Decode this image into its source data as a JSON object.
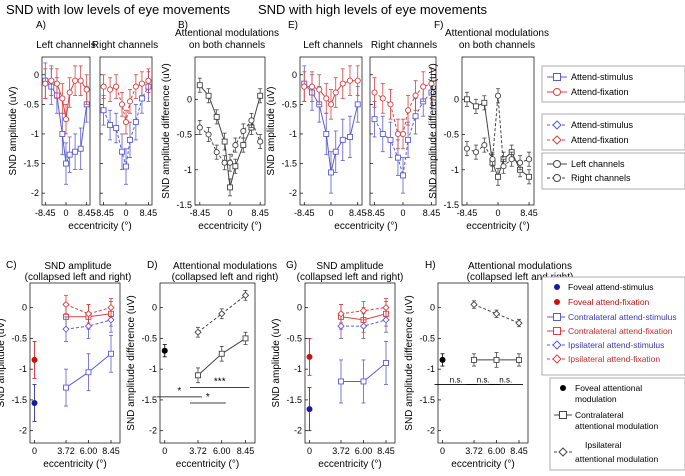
{
  "headers": {
    "low": "SND with low levels of eye movements",
    "high": "SND with high levels of eye movements"
  },
  "panel_letters": [
    "A)",
    "B)",
    "C)",
    "D)",
    "E)",
    "F)",
    "G)",
    "H)"
  ],
  "legends": {
    "top_lines": {
      "attend_stimulus": "Attend-stimulus",
      "attend_fixation": "Attend-fixation"
    },
    "top_dashed": {
      "attend_stimulus": "Attend-stimulus",
      "attend_fixation": "Attend-fixation"
    },
    "top_channels": {
      "left": "Left channels",
      "right": "Right channels"
    },
    "bottom_conditions": [
      "Foveal attend-stimulus",
      "Foveal attend-fixation",
      "Contralateral attend-stimulus",
      "Contralateral attend-fixation",
      "Ipsilateral attend-stimulus",
      "Ipsilateral attend-fixation"
    ],
    "bottom_modulation": [
      "Foveal attentional modulation",
      "Contralateral attentional modulation",
      "Ipsilateral attentional modulation"
    ]
  },
  "colors": {
    "stim": "#5b5bd6",
    "fix": "#d94040",
    "mod": "#444444",
    "foveal_stim": "#1a1aa0",
    "foveal_fix": "#d01010"
  },
  "chart_data": [
    {
      "id": "A_left",
      "type": "line",
      "panel": "A)",
      "title": "Left channels",
      "xlabel": "eccentricity (°)",
      "ylabel": "SND amplitude (uV)",
      "ylim": [
        -2.2,
        0.3
      ],
      "xticks": [
        "-8.45",
        "0",
        "8.45"
      ],
      "yticks": [
        "0",
        "-0.5",
        "-1",
        "-1.5",
        "-2"
      ],
      "x": [
        -8.45,
        -6,
        -3.72,
        -1.5,
        0,
        1.5,
        3.72,
        6,
        8.45
      ],
      "series": [
        {
          "name": "Attend-stimulus",
          "color": "#5b5bd6",
          "dashed": false,
          "values": [
            -0.1,
            -0.2,
            -0.35,
            -1.0,
            -1.5,
            -1.35,
            -1.3,
            -1.25,
            -0.5
          ],
          "errors": [
            0.3,
            0.3,
            0.3,
            0.35,
            0.35,
            0.3,
            0.3,
            0.35,
            0.3
          ]
        },
        {
          "name": "Attend-fixation",
          "color": "#d94040",
          "dashed": false,
          "values": [
            -0.15,
            -0.1,
            -0.15,
            -0.4,
            -0.75,
            -0.3,
            -0.1,
            -0.1,
            -0.25
          ],
          "errors": [
            0.25,
            0.25,
            0.25,
            0.25,
            0.25,
            0.25,
            0.25,
            0.25,
            0.25
          ]
        }
      ]
    },
    {
      "id": "A_right",
      "type": "line",
      "title": "Right channels",
      "ylim": [
        -2.2,
        0.3
      ],
      "xticks": [
        "-8.45",
        "0",
        "8.45"
      ],
      "x": [
        -8.45,
        -6,
        -3.72,
        -1.5,
        0,
        1.5,
        3.72,
        6,
        8.45
      ],
      "series": [
        {
          "name": "Attend-stimulus",
          "color": "#5b5bd6",
          "dashed": true,
          "values": [
            -0.6,
            -0.85,
            -0.9,
            -1.3,
            -1.55,
            -1.1,
            -0.8,
            -0.4,
            -0.2
          ],
          "errors": [
            0.25,
            0.25,
            0.25,
            0.3,
            0.3,
            0.3,
            0.3,
            0.25,
            0.25
          ]
        },
        {
          "name": "Attend-fixation",
          "color": "#d94040",
          "dashed": true,
          "values": [
            -0.2,
            -0.25,
            -0.2,
            -0.5,
            -0.8,
            -0.45,
            -0.2,
            -0.15,
            -0.1
          ],
          "errors": [
            0.2,
            0.2,
            0.2,
            0.2,
            0.2,
            0.2,
            0.2,
            0.2,
            0.2
          ]
        }
      ]
    },
    {
      "id": "B",
      "type": "line",
      "panel": "B)",
      "title": "Attentional modulations on both channels",
      "xlabel": "eccentricity (°)",
      "ylabel": "SND amplitude difference (uV)",
      "ylim": [
        -1.5,
        0.6
      ],
      "xticks": [
        "-8.45",
        "0",
        "8.45"
      ],
      "yticks": [
        "0",
        "-0.5",
        "-1",
        "-1.5"
      ],
      "x": [
        -8.45,
        -6,
        -3.72,
        -1.5,
        0,
        1.5,
        3.72,
        6,
        8.45
      ],
      "series": [
        {
          "name": "Left channels",
          "color": "#444444",
          "dashed": false,
          "values": [
            0.2,
            0.05,
            -0.25,
            -0.6,
            -1.25,
            -0.95,
            -0.65,
            -0.4,
            0.05
          ],
          "errors": [
            0.1,
            0.1,
            0.1,
            0.12,
            0.12,
            0.1,
            0.1,
            0.1,
            0.1
          ]
        },
        {
          "name": "Right channels",
          "color": "#444444",
          "dashed": true,
          "values": [
            -0.4,
            -0.5,
            -0.75,
            -0.9,
            -0.9,
            -0.65,
            -0.45,
            -0.3,
            -0.6
          ],
          "errors": [
            0.1,
            0.1,
            0.1,
            0.1,
            0.12,
            0.1,
            0.1,
            0.1,
            0.1
          ]
        }
      ]
    },
    {
      "id": "E_left",
      "type": "line",
      "panel": "E)",
      "title": "Left channels",
      "xlabel": "eccentricity (°)",
      "ylabel": "SND amplitude (uV)",
      "ylim": [
        -2.2,
        0.3
      ],
      "xticks": [
        "-8.45",
        "0",
        "8.45"
      ],
      "yticks": [
        "0",
        "-0.5",
        "-1",
        "-1.5",
        "-2"
      ],
      "x": [
        -8.45,
        -6,
        -3.72,
        -1.5,
        0,
        1.5,
        3.72,
        6,
        8.45
      ],
      "series": [
        {
          "name": "Attend-stimulus",
          "color": "#5b5bd6",
          "dashed": false,
          "values": [
            -0.15,
            -0.3,
            -0.5,
            -1.0,
            -1.65,
            -1.3,
            -1.1,
            -1.05,
            -0.5
          ],
          "errors": [
            0.3,
            0.3,
            0.3,
            0.35,
            0.35,
            0.35,
            0.35,
            0.35,
            0.3
          ]
        },
        {
          "name": "Attend-fixation",
          "color": "#d94040",
          "dashed": false,
          "values": [
            -0.2,
            -0.2,
            -0.25,
            -0.4,
            -0.5,
            -0.3,
            -0.15,
            -0.1,
            -0.1
          ],
          "errors": [
            0.25,
            0.25,
            0.25,
            0.25,
            0.25,
            0.25,
            0.25,
            0.25,
            0.25
          ]
        }
      ]
    },
    {
      "id": "E_right",
      "type": "line",
      "title": "Right channels",
      "ylim": [
        -2.2,
        0.3
      ],
      "xticks": [
        "-8.45",
        "0",
        "8.45"
      ],
      "x": [
        -8.45,
        -6,
        -3.72,
        -1.5,
        0,
        1.5,
        3.72,
        6,
        8.45
      ],
      "series": [
        {
          "name": "Attend-stimulus",
          "color": "#5b5bd6",
          "dashed": true,
          "values": [
            -0.75,
            -1.0,
            -1.1,
            -1.4,
            -1.7,
            -1.1,
            -0.7,
            -0.45,
            -0.3
          ],
          "errors": [
            0.3,
            0.3,
            0.3,
            0.3,
            0.3,
            0.3,
            0.3,
            0.25,
            0.25
          ]
        },
        {
          "name": "Attend-fixation",
          "color": "#d94040",
          "dashed": true,
          "values": [
            -0.3,
            -0.4,
            -0.5,
            -1.0,
            -1.0,
            -0.6,
            -0.35,
            -0.2,
            -0.15
          ],
          "errors": [
            0.25,
            0.25,
            0.25,
            0.25,
            0.25,
            0.25,
            0.25,
            0.25,
            0.25
          ]
        }
      ]
    },
    {
      "id": "F",
      "type": "line",
      "panel": "F)",
      "title": "Attentional modulations on both channels",
      "xlabel": "eccentricity (°)",
      "ylabel": "SND amplitude difference (uV)",
      "ylim": [
        -1.5,
        0.6
      ],
      "xticks": [
        "-8.45",
        "0",
        "8.45"
      ],
      "yticks": [
        "0",
        "-0.5",
        "-1",
        "-1.5"
      ],
      "x": [
        -8.45,
        -6,
        -3.72,
        -1.5,
        0,
        1.5,
        3.72,
        6,
        8.45
      ],
      "series": [
        {
          "name": "Left channels",
          "color": "#444444",
          "dashed": false,
          "values": [
            0.0,
            -0.1,
            -0.05,
            -0.9,
            -1.1,
            -0.85,
            -0.75,
            -1.0,
            -1.1
          ],
          "errors": [
            0.1,
            0.1,
            0.1,
            0.12,
            0.12,
            0.1,
            0.1,
            0.1,
            0.1
          ]
        },
        {
          "name": "Right channels",
          "color": "#444444",
          "dashed": true,
          "values": [
            -0.7,
            -0.75,
            -0.65,
            -0.85,
            0.05,
            -0.95,
            -0.85,
            -0.9,
            -0.85
          ],
          "errors": [
            0.1,
            0.1,
            0.1,
            0.1,
            0.1,
            0.1,
            0.1,
            0.1,
            0.1
          ]
        }
      ]
    },
    {
      "id": "C",
      "type": "line",
      "panel": "C)",
      "title": "SND amplitude (collapsed left and right)",
      "xlabel": "eccentricity (°)",
      "ylabel": "SND amplitude (uV)",
      "ylim": [
        -2.2,
        0.4
      ],
      "xticks": [
        "0",
        "3.72",
        "6.00",
        "8.45"
      ],
      "yticks": [
        "0",
        "-0.5",
        "-1",
        "-1.5",
        "-2"
      ],
      "x": [
        0,
        3.72,
        6.0,
        8.45
      ],
      "series": [
        {
          "name": "Foveal attend-stimulus",
          "color": "#1a1aa0",
          "marker": "dot",
          "x": [
            0
          ],
          "values": [
            -1.55
          ],
          "errors": [
            0.3
          ]
        },
        {
          "name": "Foveal attend-fixation",
          "color": "#d01010",
          "marker": "dot",
          "x": [
            0
          ],
          "values": [
            -0.85
          ],
          "errors": [
            0.3
          ]
        },
        {
          "name": "Contralateral attend-stimulus",
          "color": "#5b5bd6",
          "marker": "square",
          "x": [
            3.72,
            6.0,
            8.45
          ],
          "values": [
            -1.3,
            -1.05,
            -0.75
          ],
          "errors": [
            0.3,
            0.3,
            0.3
          ]
        },
        {
          "name": "Contralateral attend-fixation",
          "color": "#d94040",
          "marker": "square",
          "x": [
            3.72,
            6.0,
            8.45
          ],
          "values": [
            -0.15,
            -0.15,
            -0.1
          ],
          "errors": [
            0.2,
            0.2,
            0.2
          ]
        },
        {
          "name": "Ipsilateral attend-stimulus",
          "color": "#5b5bd6",
          "marker": "diamond",
          "dashed": true,
          "x": [
            3.72,
            6.0,
            8.45
          ],
          "values": [
            -0.35,
            -0.3,
            -0.2
          ],
          "errors": [
            0.2,
            0.2,
            0.2
          ]
        },
        {
          "name": "Ipsilateral attend-fixation",
          "color": "#d94040",
          "marker": "diamond",
          "dashed": true,
          "x": [
            3.72,
            6.0,
            8.45
          ],
          "values": [
            0.05,
            -0.1,
            0.0
          ],
          "errors": [
            0.15,
            0.15,
            0.15
          ]
        }
      ]
    },
    {
      "id": "D",
      "type": "line",
      "panel": "D)",
      "title": "Attentional modulations (collapsed left and right)",
      "xlabel": "eccentricity (°)",
      "ylabel": "SND amplitude difference (uV)",
      "ylim": [
        -2.2,
        0.4
      ],
      "xticks": [
        "0",
        "3.72",
        "6.00",
        "8.45"
      ],
      "yticks": [
        "0",
        "-0.5",
        "-1",
        "-1.5",
        "-2"
      ],
      "x": [
        0,
        3.72,
        6.0,
        8.45
      ],
      "series": [
        {
          "name": "Foveal attentional modulation",
          "color": "#000000",
          "marker": "dot",
          "x": [
            0
          ],
          "values": [
            -0.7
          ],
          "errors": [
            0.1
          ]
        },
        {
          "name": "Contralateral attentional modulation",
          "color": "#444444",
          "marker": "square",
          "x": [
            3.72,
            6.0,
            8.45
          ],
          "values": [
            -1.1,
            -0.75,
            -0.5
          ],
          "errors": [
            0.12,
            0.12,
            0.1
          ]
        },
        {
          "name": "Ipsilateral attentional modulation",
          "color": "#444444",
          "marker": "diamond",
          "dashed": true,
          "x": [
            3.72,
            6.0,
            8.45
          ],
          "values": [
            -0.4,
            -0.1,
            0.2
          ],
          "errors": [
            0.08,
            0.08,
            0.08
          ]
        }
      ],
      "significance": [
        {
          "label": "*",
          "x1": 0,
          "x2": 3.72,
          "y": -1.45
        },
        {
          "label": "***",
          "x1": 3.72,
          "x2": 8.45,
          "y": -1.3
        },
        {
          "label": "*",
          "x1": 3.72,
          "x2": 6.0,
          "y": -1.55
        }
      ]
    },
    {
      "id": "G",
      "type": "line",
      "panel": "G)",
      "title": "SND amplitude (collapsed left and right)",
      "xlabel": "eccentricity (°)",
      "ylabel": "SND amplitude (uV)",
      "ylim": [
        -2.2,
        0.4
      ],
      "xticks": [
        "0",
        "3.72",
        "6.00",
        "8.45"
      ],
      "yticks": [
        "0",
        "-0.5",
        "-1",
        "-1.5",
        "-2"
      ],
      "x": [
        0,
        3.72,
        6.0,
        8.45
      ],
      "series": [
        {
          "name": "Foveal attend-stimulus",
          "color": "#1a1aa0",
          "marker": "dot",
          "x": [
            0
          ],
          "values": [
            -1.65
          ],
          "errors": [
            0.35
          ]
        },
        {
          "name": "Foveal attend-fixation",
          "color": "#d01010",
          "marker": "dot",
          "x": [
            0
          ],
          "values": [
            -0.8
          ],
          "errors": [
            0.3
          ]
        },
        {
          "name": "Contralateral attend-stimulus",
          "color": "#5b5bd6",
          "marker": "square",
          "x": [
            3.72,
            6.0,
            8.45
          ],
          "values": [
            -1.2,
            -1.2,
            -0.9
          ],
          "errors": [
            0.35,
            0.35,
            0.35
          ]
        },
        {
          "name": "Contralateral attend-fixation",
          "color": "#d94040",
          "marker": "square",
          "x": [
            3.72,
            6.0,
            8.45
          ],
          "values": [
            -0.15,
            -0.2,
            -0.1
          ],
          "errors": [
            0.2,
            0.2,
            0.2
          ]
        },
        {
          "name": "Ipsilateral attend-stimulus",
          "color": "#5b5bd6",
          "marker": "diamond",
          "dashed": true,
          "x": [
            3.72,
            6.0,
            8.45
          ],
          "values": [
            -0.3,
            -0.3,
            -0.2
          ],
          "errors": [
            0.2,
            0.2,
            0.2
          ]
        },
        {
          "name": "Ipsilateral attend-fixation",
          "color": "#d94040",
          "marker": "diamond",
          "dashed": true,
          "x": [
            3.72,
            6.0,
            8.45
          ],
          "values": [
            -0.1,
            -0.05,
            0.0
          ],
          "errors": [
            0.15,
            0.15,
            0.15
          ]
        }
      ]
    },
    {
      "id": "H",
      "type": "line",
      "panel": "H)",
      "title": "Attentional modulations (collapsed left and right)",
      "xlabel": "eccentricity (°)",
      "ylabel": "SND amplitude difference (uV)",
      "ylim": [
        -2.2,
        0.4
      ],
      "xticks": [
        "0",
        "3.72",
        "6.00",
        "8.45"
      ],
      "yticks": [
        "0",
        "-0.5",
        "-1",
        "-1.5",
        "-2"
      ],
      "x": [
        0,
        3.72,
        6.0,
        8.45
      ],
      "series": [
        {
          "name": "Foveal attentional modulation",
          "color": "#000000",
          "marker": "dot",
          "x": [
            0
          ],
          "values": [
            -0.85
          ],
          "errors": [
            0.1
          ]
        },
        {
          "name": "Contralateral attentional modulation",
          "color": "#444444",
          "marker": "square",
          "x": [
            3.72,
            6.0,
            8.45
          ],
          "values": [
            -0.85,
            -0.85,
            -0.85
          ],
          "errors": [
            0.1,
            0.12,
            0.1
          ]
        },
        {
          "name": "Ipsilateral attentional modulation",
          "color": "#444444",
          "marker": "diamond",
          "dashed": true,
          "x": [
            3.72,
            6.0,
            8.45
          ],
          "values": [
            0.05,
            -0.1,
            -0.25
          ],
          "errors": [
            0.06,
            0.06,
            0.06
          ]
        }
      ],
      "significance": [
        {
          "label": "n.s.",
          "x1": 0,
          "x2": 3.72,
          "y": -1.25
        },
        {
          "label": "n.s.",
          "x1": 3.72,
          "x2": 6.0,
          "y": -1.25
        },
        {
          "label": "n.s.",
          "x1": 6.0,
          "x2": 8.45,
          "y": -1.25
        }
      ]
    }
  ]
}
